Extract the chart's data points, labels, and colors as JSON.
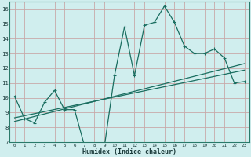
{
  "title": "",
  "xlabel": "Humidex (Indice chaleur)",
  "bg_color": "#d0eeee",
  "grid_color": "#c8a8a8",
  "line_color": "#1a6e60",
  "x": [
    0,
    1,
    2,
    3,
    4,
    5,
    6,
    7,
    8,
    9,
    10,
    11,
    12,
    13,
    14,
    15,
    16,
    17,
    18,
    19,
    20,
    21,
    22,
    23
  ],
  "y_main": [
    10.1,
    8.6,
    8.3,
    9.7,
    10.5,
    9.2,
    9.2,
    6.75,
    6.75,
    6.75,
    11.5,
    14.8,
    11.5,
    14.9,
    15.1,
    16.2,
    15.1,
    13.5,
    13.0,
    13.0,
    13.3,
    12.7,
    11.0,
    11.1
  ],
  "y_line1": [
    8.4,
    8.57,
    8.74,
    8.91,
    9.08,
    9.25,
    9.42,
    9.59,
    9.76,
    9.93,
    10.1,
    10.27,
    10.44,
    10.61,
    10.78,
    10.95,
    11.12,
    11.29,
    11.46,
    11.63,
    11.8,
    11.97,
    12.14,
    12.31
  ],
  "y_line2": [
    8.65,
    8.79,
    8.93,
    9.07,
    9.21,
    9.35,
    9.49,
    9.63,
    9.77,
    9.91,
    10.05,
    10.19,
    10.33,
    10.47,
    10.61,
    10.75,
    10.89,
    11.03,
    11.17,
    11.31,
    11.45,
    11.59,
    11.73,
    11.87
  ],
  "xlim": [
    -0.5,
    23.5
  ],
  "ylim": [
    7,
    16.5
  ],
  "yticks": [
    7,
    8,
    9,
    10,
    11,
    12,
    13,
    14,
    15,
    16
  ],
  "xticks": [
    0,
    1,
    2,
    3,
    4,
    5,
    6,
    7,
    8,
    9,
    10,
    11,
    12,
    13,
    14,
    15,
    16,
    17,
    18,
    19,
    20,
    21,
    22,
    23
  ]
}
